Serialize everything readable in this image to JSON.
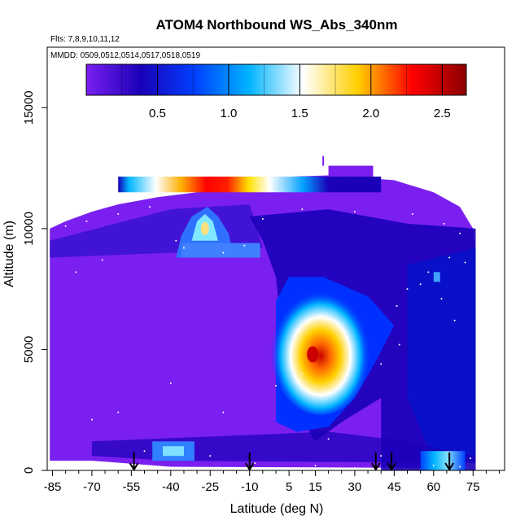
{
  "chart_data": {
    "type": "heatmap",
    "title": "ATOM4 Northbound WS_Abs_340nm",
    "notes": [
      "Flts: 7,8,9,10,11,12",
      "MMDD: 0509,0512,0514,0517,0518,0519"
    ],
    "xlabel": "Latitude (deg N)",
    "ylabel": "Altitude (m)",
    "x_ticks": [
      "-85",
      "-70",
      "-55",
      "-40",
      "-25",
      "-10",
      "5",
      "15",
      "30",
      "45",
      "60",
      "75"
    ],
    "x_tick_values": [
      -85,
      -70,
      -55,
      -40,
      -25,
      -10,
      5,
      15,
      30,
      45,
      60,
      75
    ],
    "y_ticks": [
      "0",
      "5000",
      "10000",
      "15000"
    ],
    "y_tick_values": [
      0,
      5000,
      10000,
      15000
    ],
    "xlim": [
      -87,
      87
    ],
    "ylim": [
      0,
      17500
    ],
    "colorbar": {
      "ticks": [
        "0.5",
        "1.0",
        "1.5",
        "2.0",
        "2.5"
      ],
      "tick_values": [
        0.5,
        1.0,
        1.5,
        2.0,
        2.5
      ],
      "range": [
        0,
        2.67
      ],
      "colors": [
        "#7a1ff0",
        "#1a00b8",
        "#0040ff",
        "#00b4ff",
        "#ffffff",
        "#ffd000",
        "#ff0000",
        "#8b0000"
      ]
    },
    "profile_markers_lat": [
      -54,
      -10,
      38,
      44,
      66
    ],
    "features": [
      {
        "name": "background",
        "lat": [
          -86,
          76
        ],
        "alt": [
          0,
          11000
        ],
        "value": 0.15
      },
      {
        "name": "high-layer-band",
        "lat": [
          -60,
          20
        ],
        "alt": [
          11500,
          12100
        ],
        "value": 1.9
      },
      {
        "name": "upper-cap",
        "lat": [
          -30,
          -20
        ],
        "alt": [
          8700,
          10800
        ],
        "value": 1.3
      },
      {
        "name": "tropical-plume",
        "lat": [
          5,
          35
        ],
        "alt": [
          3000,
          7500
        ],
        "value": 2.3
      },
      {
        "name": "arctic-boundary",
        "lat": [
          55,
          75
        ],
        "alt": [
          0,
          800
        ],
        "value": 0.9
      }
    ]
  }
}
